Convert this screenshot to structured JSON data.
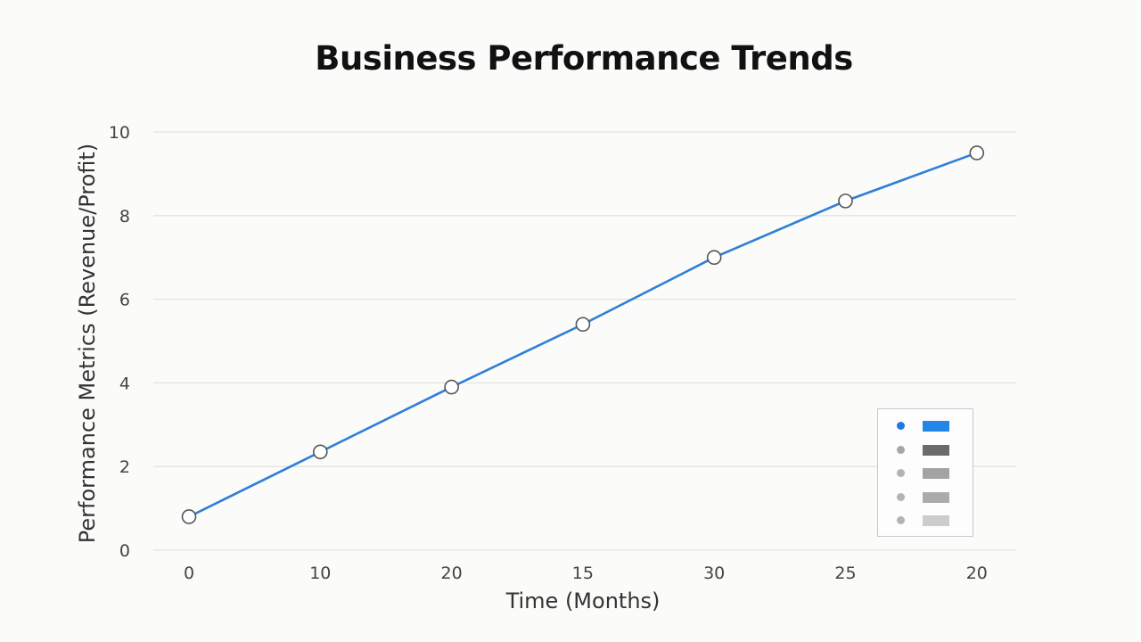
{
  "chart_data": {
    "type": "line",
    "title": "Business Performance Trends",
    "xlabel": "Time (Months)",
    "ylabel": "Performance Metrics (Revenue/Profit)",
    "x_tick_labels": [
      "0",
      "10",
      "20",
      "15",
      "30",
      "25",
      "20"
    ],
    "y_ticks": [
      0,
      2,
      4,
      6,
      8,
      10
    ],
    "ylim": [
      0,
      10
    ],
    "grid": true,
    "legend_position": "bottom-right",
    "series": [
      {
        "color": "#2f7fd6",
        "values": [
          0.8,
          2.35,
          3.9,
          5.4,
          7.0,
          8.35,
          9.5
        ]
      }
    ],
    "legend": [
      {
        "dot_color": "#1f78e0",
        "swatch_color": "#2386e6"
      },
      {
        "dot_color": "#a6a6a6",
        "swatch_color": "#6b6b6b"
      },
      {
        "dot_color": "#b3b3b3",
        "swatch_color": "#a3a3a3"
      },
      {
        "dot_color": "#b3b3b3",
        "swatch_color": "#ababab"
      },
      {
        "dot_color": "#b3b3b3",
        "swatch_color": "#cccccc"
      }
    ]
  }
}
